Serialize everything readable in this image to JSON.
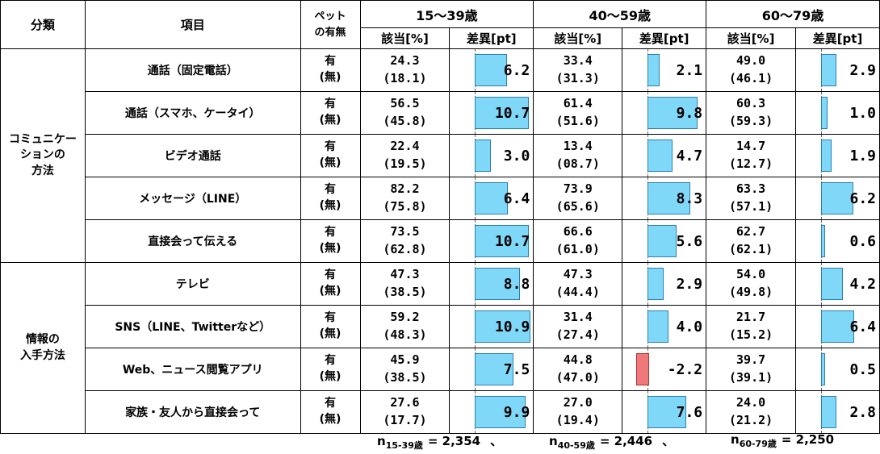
{
  "header": {
    "category": "分類",
    "item": "項目",
    "pet_line1": "ペット",
    "pet_line2": "の有無",
    "groups": [
      "15～39歳",
      "40～59歳",
      "60～79歳"
    ],
    "col_val": "該当[%]",
    "col_diff": "差異[pt]"
  },
  "pet_yes": "有",
  "pet_no": "(無)",
  "categories": [
    {
      "line1": "コミュニケー",
      "line2": "ションの",
      "line3": "方法"
    },
    {
      "line1": "情報の",
      "line2": "入手方法",
      "line3": ""
    }
  ],
  "chart_data": {
    "type": "table",
    "groups": [
      "15～39歳",
      "40～59歳",
      "60～79歳"
    ],
    "diff_range": [
      -5,
      12
    ],
    "rows": [
      {
        "category": 0,
        "item": "通話（固定電話）",
        "yes": [
          "24.3",
          "33.4",
          "49.0"
        ],
        "no": [
          "(18.1)",
          "(31.3)",
          "(46.1)"
        ],
        "diff": [
          6.2,
          2.1,
          2.9
        ],
        "diff_text": [
          "6.2",
          "2.1",
          "2.9"
        ]
      },
      {
        "category": 0,
        "item": "通話（スマホ、ケータイ）",
        "yes": [
          "56.5",
          "61.4",
          "60.3"
        ],
        "no": [
          "(45.8)",
          "(51.6)",
          "(59.3)"
        ],
        "diff": [
          10.7,
          9.8,
          1.0
        ],
        "diff_text": [
          "10.7",
          "9.8",
          "1.0"
        ]
      },
      {
        "category": 0,
        "item": "ビデオ通話",
        "yes": [
          "22.4",
          "13.4",
          "14.7"
        ],
        "no": [
          "(19.5)",
          "(08.7)",
          "(12.7)"
        ],
        "diff": [
          3.0,
          4.7,
          1.9
        ],
        "diff_text": [
          "3.0",
          "4.7",
          "1.9"
        ]
      },
      {
        "category": 0,
        "item": "メッセージ（LINE）",
        "yes": [
          "82.2",
          "73.9",
          "63.3"
        ],
        "no": [
          "(75.8)",
          "(65.6)",
          "(57.1)"
        ],
        "diff": [
          6.4,
          8.3,
          6.2
        ],
        "diff_text": [
          "6.4",
          "8.3",
          "6.2"
        ]
      },
      {
        "category": 0,
        "item": "直接会って伝える",
        "yes": [
          "73.5",
          "66.6",
          "62.7"
        ],
        "no": [
          "(62.8)",
          "(61.0)",
          "(62.1)"
        ],
        "diff": [
          10.7,
          5.6,
          0.6
        ],
        "diff_text": [
          "10.7",
          "5.6",
          "0.6"
        ]
      },
      {
        "category": 1,
        "item": "テレビ",
        "yes": [
          "47.3",
          "47.3",
          "54.0"
        ],
        "no": [
          "(38.5)",
          "(44.4)",
          "(49.8)"
        ],
        "diff": [
          8.8,
          2.9,
          4.2
        ],
        "diff_text": [
          "8.8",
          "2.9",
          "4.2"
        ]
      },
      {
        "category": 1,
        "item": "SNS（LINE、Twitterなど）",
        "yes": [
          "59.2",
          "31.4",
          "21.7"
        ],
        "no": [
          "(48.3)",
          "(27.4)",
          "(15.2)"
        ],
        "diff": [
          10.9,
          4.0,
          6.4
        ],
        "diff_text": [
          "10.9",
          "4.0",
          "6.4"
        ]
      },
      {
        "category": 1,
        "item": "Web、ニュース閲覧アプリ",
        "yes": [
          "45.9",
          "44.8",
          "39.7"
        ],
        "no": [
          "(38.5)",
          "(47.0)",
          "(39.1)"
        ],
        "diff": [
          7.5,
          -2.2,
          0.5
        ],
        "diff_text": [
          "7.5",
          "-2.2",
          "0.5"
        ]
      },
      {
        "category": 1,
        "item": "家族・友人から直接会って",
        "yes": [
          "27.6",
          "27.0",
          "24.0"
        ],
        "no": [
          "(17.7)",
          "(19.4)",
          "(21.2)"
        ],
        "diff": [
          9.9,
          7.6,
          2.8
        ],
        "diff_text": [
          "9.9",
          "7.6",
          "2.8"
        ]
      }
    ]
  },
  "footer": {
    "n_items": [
      {
        "n": "n",
        "sub": "15-39歳",
        "value": "= 2,354",
        "sep": "、"
      },
      {
        "n": "n",
        "sub": "40-59歳",
        "value": "= 2,446",
        "sep": "、"
      },
      {
        "n": "n",
        "sub": "60-79歳",
        "value": "= 2,250",
        "sep": ""
      }
    ]
  }
}
